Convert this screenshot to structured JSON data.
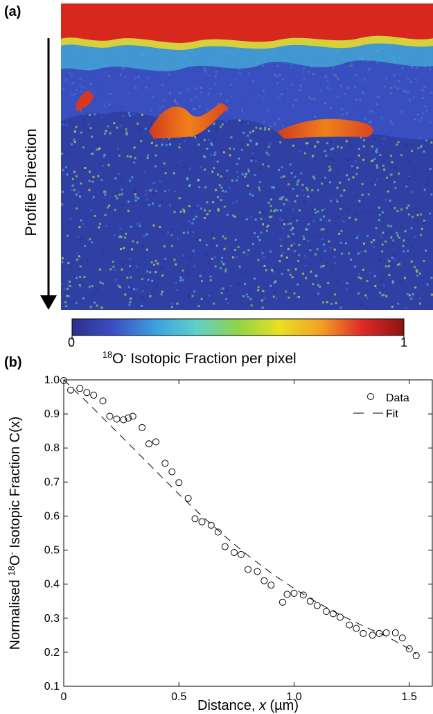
{
  "panel_a": {
    "label": "(a)",
    "arrow_label": "Profile Direction",
    "colorbar": {
      "min_label": "0",
      "max_label": "1",
      "title_sup1": "18",
      "title_main": "O",
      "title_sup2": "-",
      "title_rest": " Isotopic Fraction per pixel",
      "colors": [
        "#2b2f8f",
        "#3b4fc4",
        "#3aa0e0",
        "#5fd0c8",
        "#8fd44a",
        "#e8e020",
        "#f2a024",
        "#e02828",
        "#8c1414"
      ]
    }
  },
  "panel_b": {
    "label": "(b)"
  },
  "chart_data": {
    "type": "scatter",
    "xlabel": "Distance, x (µm)",
    "xlabel_parts": [
      "Distance, ",
      "x",
      " (µm)"
    ],
    "ylabel": "Normalised 18O- Isotopic Fraction C(x)",
    "ylabel_parts": [
      "Normalised ",
      "18",
      "O",
      "-",
      " Isotopic Fraction C(x)"
    ],
    "xlim": [
      0,
      1.6
    ],
    "ylim": [
      0.1,
      1.0
    ],
    "xticks": [
      0,
      0.5,
      1.0,
      1.5
    ],
    "xtick_labels": [
      "0",
      "0.5",
      "1.0",
      "1.5"
    ],
    "yticks": [
      0.1,
      0.2,
      0.3,
      0.4,
      0.5,
      0.6,
      0.7,
      0.8,
      0.9,
      1.0
    ],
    "ytick_labels": [
      "0.1",
      "0.2",
      "0.3",
      "0.4",
      "0.5",
      "0.6",
      "0.7",
      "0.8",
      "0.9",
      "1.0"
    ],
    "legend_position": "top-right",
    "series": [
      {
        "name": "Data",
        "marker": "open-circle",
        "x": [
          0.0,
          0.03,
          0.07,
          0.1,
          0.13,
          0.17,
          0.2,
          0.23,
          0.26,
          0.28,
          0.3,
          0.34,
          0.37,
          0.4,
          0.44,
          0.47,
          0.5,
          0.54,
          0.57,
          0.6,
          0.64,
          0.67,
          0.7,
          0.74,
          0.77,
          0.8,
          0.84,
          0.87,
          0.9,
          0.95,
          0.97,
          1.0,
          1.04,
          1.07,
          1.1,
          1.14,
          1.17,
          1.2,
          1.24,
          1.27,
          1.3,
          1.34,
          1.37,
          1.4,
          1.44,
          1.47,
          1.5,
          1.53
        ],
        "y": [
          0.998,
          0.97,
          0.975,
          0.963,
          0.955,
          0.938,
          0.893,
          0.885,
          0.883,
          0.888,
          0.893,
          0.86,
          0.812,
          0.818,
          0.755,
          0.73,
          0.698,
          0.652,
          0.592,
          0.583,
          0.573,
          0.553,
          0.51,
          0.493,
          0.487,
          0.443,
          0.437,
          0.41,
          0.397,
          0.347,
          0.37,
          0.373,
          0.368,
          0.35,
          0.337,
          0.32,
          0.313,
          0.303,
          0.28,
          0.27,
          0.255,
          0.25,
          0.255,
          0.257,
          0.257,
          0.242,
          0.21,
          0.19
        ]
      },
      {
        "name": "Fit",
        "style": "dashed",
        "x": [
          0,
          0.1,
          0.2,
          0.3,
          0.4,
          0.5,
          0.6,
          0.7,
          0.8,
          0.9,
          1.0,
          1.1,
          1.2,
          1.3,
          1.4,
          1.5,
          1.53
        ],
        "y": [
          1.0,
          0.935,
          0.868,
          0.8,
          0.732,
          0.664,
          0.6,
          0.54,
          0.484,
          0.433,
          0.387,
          0.346,
          0.31,
          0.277,
          0.247,
          0.21,
          0.195
        ]
      }
    ]
  }
}
